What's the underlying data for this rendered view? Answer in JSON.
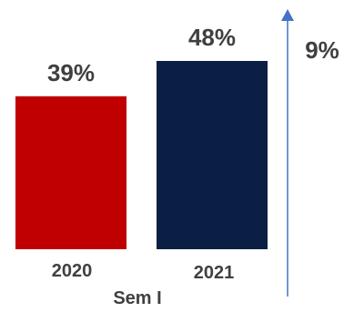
{
  "chart_data": {
    "type": "bar",
    "categories": [
      "2020",
      "2021"
    ],
    "values": [
      39,
      48
    ],
    "value_labels": [
      "39%",
      "48%"
    ],
    "colors": [
      "#c00000",
      "#0b1f45"
    ],
    "xlabel": "Sem I",
    "ylabel": "",
    "ylim": [
      0,
      48
    ],
    "grid": false,
    "legend": "none",
    "annotation": {
      "label": "9%",
      "color": "#4472c4",
      "text_color": "#404040"
    },
    "text_color": "#404040"
  }
}
